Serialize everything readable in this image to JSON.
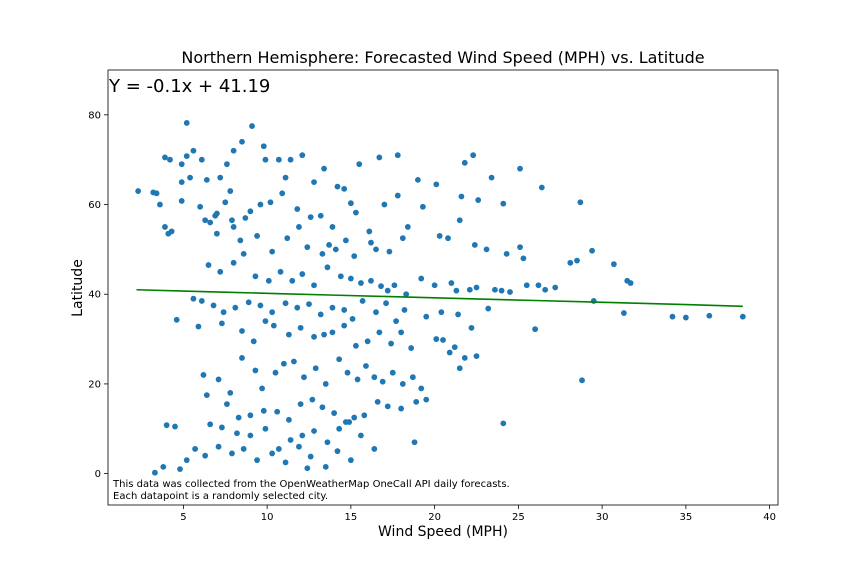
{
  "chart_data": {
    "type": "scatter",
    "title": "Northern Hemisphere: Forecasted Wind Speed (MPH) vs. Latitude",
    "xlabel": "Wind Speed (MPH)",
    "ylabel": "Latitude",
    "xlim": [
      0.5,
      40.5
    ],
    "ylim": [
      -7,
      90
    ],
    "xticks": [
      5,
      10,
      15,
      20,
      25,
      30,
      35,
      40
    ],
    "yticks": [
      0,
      20,
      40,
      60,
      80
    ],
    "equation": "Y = -0.1x + 41.19",
    "note_lines": [
      "This data was collected from the OpenWeatherMap OneCall API daily forecasts.",
      "Each datapoint is a randomly selected city."
    ],
    "grid": false,
    "colors": {
      "points": "#1f77b4",
      "regression": "#008000"
    },
    "regression": {
      "slope": -0.1,
      "intercept": 41.19,
      "x": [
        2.2,
        5,
        8,
        11,
        14,
        17,
        20,
        23,
        26,
        29,
        32,
        35,
        38.4
      ],
      "y": [
        41.0,
        40.7,
        40.4,
        40.1,
        39.8,
        39.5,
        39.2,
        38.9,
        38.6,
        38.3,
        38.0,
        37.7,
        37.3
      ]
    },
    "points": [
      [
        2.3,
        63
      ],
      [
        3.2,
        62.7
      ],
      [
        3.4,
        62.5
      ],
      [
        3.9,
        70.5
      ],
      [
        4.2,
        70
      ],
      [
        4.9,
        69
      ],
      [
        5.2,
        70.8
      ],
      [
        5.6,
        72
      ],
      [
        6.1,
        70
      ],
      [
        4.9,
        65
      ],
      [
        5.4,
        66
      ],
      [
        6.4,
        65.5
      ],
      [
        7.2,
        66
      ],
      [
        7.6,
        69
      ],
      [
        8.0,
        72
      ],
      [
        8.5,
        74
      ],
      [
        9.1,
        77.5
      ],
      [
        9.8,
        73
      ],
      [
        9.9,
        70
      ],
      [
        10.7,
        70
      ],
      [
        11.1,
        66
      ],
      [
        11.4,
        70
      ],
      [
        12.1,
        71
      ],
      [
        12.8,
        65
      ],
      [
        13.4,
        68
      ],
      [
        14.2,
        64
      ],
      [
        15.5,
        69
      ],
      [
        16.7,
        70.5
      ],
      [
        17.8,
        71
      ],
      [
        14.6,
        63.5
      ],
      [
        5.2,
        78.2
      ],
      [
        3.6,
        60
      ],
      [
        4.9,
        60.8
      ],
      [
        6.0,
        59.5
      ],
      [
        6.6,
        56
      ],
      [
        7.0,
        58
      ],
      [
        7.5,
        60.5
      ],
      [
        8.0,
        55
      ],
      [
        8.7,
        57
      ],
      [
        9.0,
        58.5
      ],
      [
        9.6,
        60
      ],
      [
        10.2,
        60.5
      ],
      [
        10.9,
        62.5
      ],
      [
        11.8,
        59
      ],
      [
        12.6,
        57.2
      ],
      [
        13.2,
        57.5
      ],
      [
        13.9,
        55
      ],
      [
        15.0,
        60.3
      ],
      [
        15.3,
        58.2
      ],
      [
        16.1,
        54
      ],
      [
        17.0,
        60
      ],
      [
        17.8,
        62
      ],
      [
        18.1,
        52.5
      ],
      [
        19.3,
        59.5
      ],
      [
        21.6,
        61.8
      ],
      [
        19.0,
        65.5
      ],
      [
        20.1,
        64.5
      ],
      [
        22.6,
        61
      ],
      [
        23.4,
        66
      ],
      [
        24.1,
        60.2
      ],
      [
        25.1,
        68
      ],
      [
        26.4,
        63.8
      ],
      [
        28.7,
        60.5
      ],
      [
        22.3,
        71
      ],
      [
        21.8,
        69.3
      ],
      [
        3.9,
        55
      ],
      [
        4.1,
        53.5
      ],
      [
        4.3,
        54
      ],
      [
        6.3,
        56.5
      ],
      [
        7.0,
        53.5
      ],
      [
        7.9,
        56.5
      ],
      [
        8.4,
        52
      ],
      [
        9.4,
        53
      ],
      [
        10.3,
        49.5
      ],
      [
        11.2,
        52.5
      ],
      [
        11.9,
        55
      ],
      [
        12.4,
        50.5
      ],
      [
        13.3,
        49
      ],
      [
        13.7,
        51
      ],
      [
        14.1,
        50
      ],
      [
        14.7,
        52
      ],
      [
        15.2,
        48.5
      ],
      [
        16.2,
        51.5
      ],
      [
        16.5,
        50
      ],
      [
        17.3,
        49.5
      ],
      [
        18.4,
        55
      ],
      [
        20.3,
        53
      ],
      [
        20.8,
        52.5
      ],
      [
        21.5,
        56.5
      ],
      [
        22.4,
        51
      ],
      [
        23.1,
        50
      ],
      [
        24.3,
        49
      ],
      [
        25.1,
        50.5
      ],
      [
        25.3,
        48
      ],
      [
        28.1,
        47
      ],
      [
        28.5,
        47.5
      ],
      [
        29.4,
        49.7
      ],
      [
        30.7,
        46.7
      ],
      [
        31.5,
        43
      ],
      [
        31.7,
        42.5
      ],
      [
        6.5,
        46.5
      ],
      [
        7.2,
        45
      ],
      [
        8.0,
        47
      ],
      [
        8.6,
        49
      ],
      [
        9.3,
        44
      ],
      [
        10.1,
        43
      ],
      [
        10.8,
        45
      ],
      [
        11.5,
        43
      ],
      [
        12.1,
        44.5
      ],
      [
        12.8,
        42
      ],
      [
        13.6,
        46
      ],
      [
        14.4,
        44
      ],
      [
        15.0,
        43.5
      ],
      [
        15.6,
        42.5
      ],
      [
        16.2,
        43
      ],
      [
        16.8,
        41.8
      ],
      [
        17.2,
        40.8
      ],
      [
        17.6,
        42
      ],
      [
        18.3,
        40
      ],
      [
        19.2,
        43.5
      ],
      [
        20.0,
        42
      ],
      [
        21.0,
        42.5
      ],
      [
        21.3,
        40.8
      ],
      [
        22.1,
        41
      ],
      [
        22.5,
        41.5
      ],
      [
        23.6,
        41
      ],
      [
        24.0,
        40.8
      ],
      [
        24.5,
        40.5
      ],
      [
        25.5,
        42
      ],
      [
        26.2,
        42
      ],
      [
        26.6,
        41
      ],
      [
        27.2,
        41.5
      ],
      [
        5.6,
        39
      ],
      [
        6.1,
        38.5
      ],
      [
        6.8,
        37.5
      ],
      [
        7.4,
        36
      ],
      [
        8.1,
        37
      ],
      [
        8.9,
        38.2
      ],
      [
        9.6,
        37.5
      ],
      [
        10.3,
        36
      ],
      [
        11.1,
        38
      ],
      [
        11.8,
        37
      ],
      [
        12.5,
        37.8
      ],
      [
        13.2,
        35.5
      ],
      [
        13.9,
        37
      ],
      [
        14.6,
        36.5
      ],
      [
        15.1,
        34.5
      ],
      [
        15.7,
        38.5
      ],
      [
        16.5,
        36
      ],
      [
        17.1,
        38
      ],
      [
        17.7,
        34
      ],
      [
        18.2,
        36.5
      ],
      [
        19.5,
        35
      ],
      [
        20.4,
        36
      ],
      [
        21.4,
        35.5
      ],
      [
        22.2,
        32.5
      ],
      [
        23.2,
        36.8
      ],
      [
        26.0,
        32.2
      ],
      [
        29.5,
        38.5
      ],
      [
        31.3,
        35.8
      ],
      [
        34.2,
        35
      ],
      [
        35.0,
        34.8
      ],
      [
        36.4,
        35.2
      ],
      [
        38.4,
        35
      ],
      [
        4.6,
        34.3
      ],
      [
        5.9,
        32.8
      ],
      [
        7.3,
        33.5
      ],
      [
        8.5,
        31.8
      ],
      [
        9.2,
        29.5
      ],
      [
        9.9,
        34
      ],
      [
        10.4,
        33
      ],
      [
        11.3,
        31
      ],
      [
        12.0,
        32.5
      ],
      [
        12.8,
        30.5
      ],
      [
        13.4,
        31
      ],
      [
        13.9,
        31.5
      ],
      [
        14.6,
        33
      ],
      [
        15.3,
        28.5
      ],
      [
        16.0,
        29.5
      ],
      [
        16.7,
        31.5
      ],
      [
        17.4,
        29
      ],
      [
        18.0,
        31.5
      ],
      [
        18.6,
        28
      ],
      [
        20.1,
        30
      ],
      [
        20.5,
        29.8
      ],
      [
        21.2,
        28.2
      ],
      [
        21.8,
        25.8
      ],
      [
        22.5,
        26.2
      ],
      [
        20.9,
        27
      ],
      [
        6.2,
        22
      ],
      [
        7.1,
        21
      ],
      [
        7.8,
        18
      ],
      [
        8.5,
        25.8
      ],
      [
        9.3,
        23
      ],
      [
        9.7,
        19
      ],
      [
        10.5,
        22.5
      ],
      [
        11.0,
        24.5
      ],
      [
        11.6,
        25
      ],
      [
        12.2,
        21.5
      ],
      [
        12.9,
        23.5
      ],
      [
        13.5,
        20
      ],
      [
        14.3,
        25.5
      ],
      [
        14.8,
        22.5
      ],
      [
        15.4,
        21
      ],
      [
        15.9,
        24
      ],
      [
        16.4,
        21.5
      ],
      [
        16.9,
        20.5
      ],
      [
        17.5,
        22.5
      ],
      [
        18.1,
        20
      ],
      [
        18.7,
        21.5
      ],
      [
        19.2,
        19
      ],
      [
        21.5,
        23.5
      ],
      [
        28.8,
        20.8
      ],
      [
        6.4,
        17.5
      ],
      [
        7.6,
        15.5
      ],
      [
        8.3,
        12.5
      ],
      [
        9.0,
        13
      ],
      [
        9.8,
        14
      ],
      [
        10.6,
        13.8
      ],
      [
        11.3,
        12
      ],
      [
        12.0,
        15.5
      ],
      [
        12.7,
        16.5
      ],
      [
        13.3,
        14.8
      ],
      [
        14.0,
        13.5
      ],
      [
        14.7,
        11.5
      ],
      [
        15.2,
        12.5
      ],
      [
        15.8,
        13
      ],
      [
        16.6,
        16
      ],
      [
        17.2,
        15
      ],
      [
        18.0,
        14.5
      ],
      [
        18.9,
        16
      ],
      [
        19.5,
        16.5
      ],
      [
        24.1,
        11.2
      ],
      [
        4.5,
        10.5
      ],
      [
        6.6,
        11
      ],
      [
        7.3,
        10.3
      ],
      [
        8.2,
        9
      ],
      [
        9.0,
        8.5
      ],
      [
        9.9,
        10
      ],
      [
        10.7,
        5.5
      ],
      [
        11.4,
        7.5
      ],
      [
        12.1,
        8.5
      ],
      [
        12.8,
        9.5
      ],
      [
        13.6,
        7
      ],
      [
        14.3,
        10
      ],
      [
        14.9,
        11.5
      ],
      [
        15.6,
        8.5
      ],
      [
        16.4,
        5.5
      ],
      [
        18.8,
        7
      ],
      [
        4.8,
        1
      ],
      [
        5.2,
        3
      ],
      [
        5.7,
        5.5
      ],
      [
        6.3,
        4
      ],
      [
        7.1,
        6
      ],
      [
        7.9,
        4.5
      ],
      [
        8.6,
        5.5
      ],
      [
        9.4,
        3
      ],
      [
        10.3,
        4.5
      ],
      [
        11.1,
        2.5
      ],
      [
        11.9,
        6
      ],
      [
        12.6,
        3.8
      ],
      [
        13.5,
        1.5
      ],
      [
        14.2,
        5
      ],
      [
        15.0,
        3
      ],
      [
        3.8,
        1.5
      ],
      [
        3.3,
        0.2
      ],
      [
        12.4,
        1.2
      ],
      [
        4.0,
        10.8
      ],
      [
        6.9,
        57.5
      ],
      [
        7.8,
        63
      ]
    ]
  }
}
